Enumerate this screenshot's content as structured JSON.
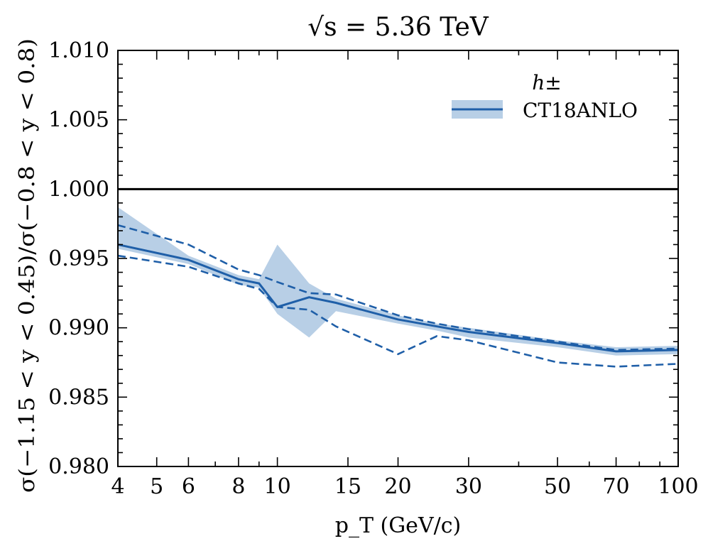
{
  "chart_data": {
    "type": "line",
    "title": "√s = 5.36 TeV",
    "xlabel": "p_T (GeV/c)",
    "ylabel": "σ(−1.15 < y < 0.45)/σ(−0.8 < y < 0.8)",
    "xscale": "log",
    "xlim": [
      4,
      100
    ],
    "ylim": [
      0.98,
      1.01
    ],
    "x_ticks": [
      4,
      5,
      6,
      8,
      10,
      15,
      20,
      30,
      50,
      70,
      100
    ],
    "x_tick_labels": [
      "4",
      "5",
      "6",
      "8",
      "10",
      "15",
      "20",
      "30",
      "50",
      "70",
      "100"
    ],
    "y_ticks": [
      0.98,
      0.985,
      0.99,
      0.995,
      1.0,
      1.005,
      1.01
    ],
    "y_tick_labels": [
      "0.980",
      "0.985",
      "0.990",
      "0.995",
      "1.000",
      "1.005",
      "1.010"
    ],
    "grid": false,
    "legend": {
      "title": "h±",
      "placement": "top-right",
      "entries": [
        "CT18ANLO"
      ]
    },
    "reference_line": {
      "y": 1.0,
      "color": "#000000"
    },
    "colors": {
      "series": "#1f5fa8",
      "band": "#b8cfe6"
    },
    "x": [
      4,
      6,
      8,
      9,
      10,
      12,
      14,
      20,
      25,
      30,
      50,
      70,
      100
    ],
    "series": [
      {
        "name": "CT18ANLO",
        "style": "solid",
        "values": [
          0.996,
          0.9949,
          0.9935,
          0.9932,
          0.9915,
          0.9922,
          0.9918,
          0.9906,
          0.9901,
          0.9897,
          0.9889,
          0.9883,
          0.9884
        ]
      },
      {
        "style": "dashed",
        "values": [
          0.9974,
          0.996,
          0.9942,
          0.9938,
          0.9933,
          0.9925,
          0.9924,
          0.9909,
          0.9903,
          0.9899,
          0.989,
          0.9884,
          0.9885
        ]
      },
      {
        "style": "dashed",
        "values": [
          0.9952,
          0.9944,
          0.9932,
          0.9928,
          0.9915,
          0.9913,
          0.9901,
          0.9881,
          0.9894,
          0.9891,
          0.9875,
          0.9872,
          0.9874
        ]
      }
    ],
    "band": {
      "upper": [
        0.9987,
        0.9952,
        0.9938,
        0.9935,
        0.996,
        0.9932,
        0.9921,
        0.9909,
        0.9903,
        0.99,
        0.9891,
        0.9886,
        0.9887
      ],
      "lower": [
        0.9957,
        0.9946,
        0.9931,
        0.9929,
        0.991,
        0.9893,
        0.9912,
        0.9903,
        0.9898,
        0.9893,
        0.9886,
        0.988,
        0.9881
      ]
    }
  }
}
